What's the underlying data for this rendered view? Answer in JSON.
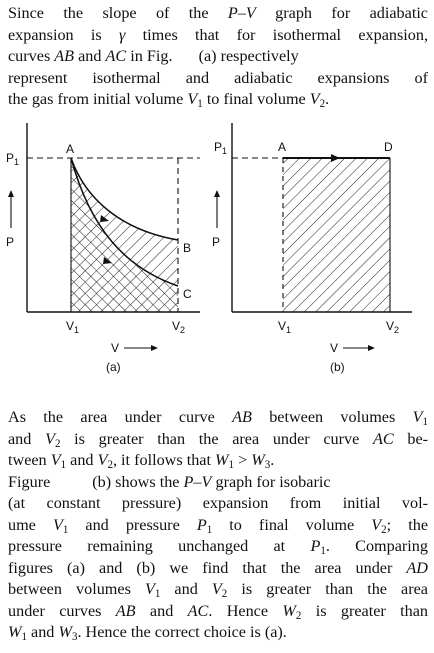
{
  "top_paragraph": {
    "line1_a": "Since the slope of the ",
    "line1_b": "P–V",
    "line1_c": " graph for adiabatic",
    "line2_a": "expansion is ",
    "line2_b": "γ",
    "line2_c": " times that for isothermal expansion,",
    "line3_a": "curves ",
    "line3_b": "AB",
    "line3_c": " and ",
    "line3_d": "AC",
    "line3_e": " in Fig.",
    "line3_f": "(a) respectively",
    "line4": "represent isothermal and adiabatic expansions of",
    "line5_a": "the gas from initial volume ",
    "line5_b": "V",
    "line5_c": "1",
    "line5_d": " to final volume ",
    "line5_e": "V",
    "line5_f": "2",
    "line5_g": "."
  },
  "figure_a": {
    "caption": "(a)",
    "p1_label": "P",
    "p1_sub": "1",
    "p_label": "P",
    "v_label": "V",
    "v1_label": "V",
    "v1_sub": "1",
    "v2_label": "V",
    "v2_sub": "2",
    "point_a": "A",
    "point_b": "B",
    "point_c": "C"
  },
  "figure_b": {
    "caption": "(b)",
    "p1_label": "P",
    "p1_sub": "1",
    "p_label": "P",
    "v_label": "V",
    "v1_label": "V",
    "v1_sub": "1",
    "v2_label": "V",
    "v2_sub": "2",
    "point_a": "A",
    "point_d": "D"
  },
  "bottom_paragraph": {
    "l1_a": "As the area under curve ",
    "l1_b": "AB",
    "l1_c": " between volumes ",
    "l1_d": "V",
    "l1_e": "1",
    "l2_a": "and ",
    "l2_b": "V",
    "l2_c": "2",
    "l2_d": " is greater than the area under curve ",
    "l2_e": "AC",
    "l2_f": " be-",
    "l3_a": "tween ",
    "l3_b": "V",
    "l3_c": "1",
    "l3_d": " and ",
    "l3_e": "V",
    "l3_f": "2",
    "l3_g": ", it follows that ",
    "l3_h": "W",
    "l3_i": "1",
    "l3_j": " > ",
    "l3_k": "W",
    "l3_l": "3",
    "l3_m": ".",
    "l4_a": "Figure",
    "l4_b": "(b) shows the ",
    "l4_c": "P–V",
    "l4_d": " graph for isobaric",
    "l5": "(at constant pressure) expansion from initial vol-",
    "l6_a": "ume ",
    "l6_b": "V",
    "l6_c": "1",
    "l6_d": " and pressure ",
    "l6_e": "P",
    "l6_f": "1",
    "l6_g": " to final volume ",
    "l6_h": "V",
    "l6_i": "2",
    "l6_j": "; the",
    "l7_a": "pressure remaining unchanged at ",
    "l7_b": "P",
    "l7_c": "1",
    "l7_d": ". Comparing",
    "l8_a": "figures (a) and (b) we find that the area under ",
    "l8_b": "AD",
    "l9_a": "between volumes ",
    "l9_b": "V",
    "l9_c": "1",
    "l9_d": " and ",
    "l9_e": "V",
    "l9_f": "2",
    "l9_g": " is greater than the area",
    "l10_a": "under curves ",
    "l10_b": "AB",
    "l10_c": " and ",
    "l10_d": "AC",
    "l10_e": ". Hence ",
    "l10_f": "W",
    "l10_g": "2",
    "l10_h": " is greater than",
    "l11_a": "W",
    "l11_b": "1",
    "l11_c": " and ",
    "l11_d": "W",
    "l11_e": "3",
    "l11_f": ". Hence the correct choice is (a)."
  }
}
